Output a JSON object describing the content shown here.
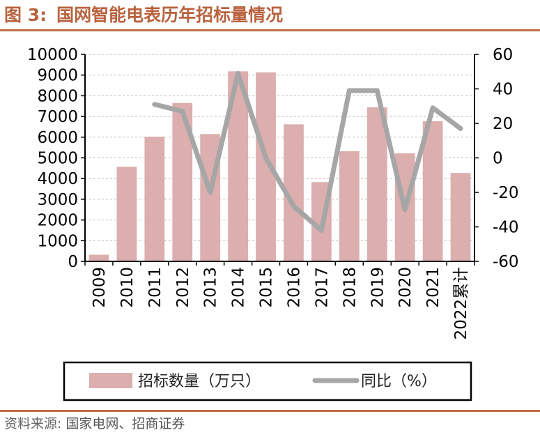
{
  "figure": {
    "label": "图 3:",
    "title": "国网智能电表历年招标量情况"
  },
  "source": {
    "label": "资料来源:",
    "text": "国家电网、招商证券"
  },
  "colors": {
    "bar": "#dcaeae",
    "line": "#a6a6a6",
    "rule": "#c26a44",
    "title": "#b8623e"
  },
  "chart_data": {
    "type": "bar",
    "categories": [
      "2009",
      "2010",
      "2011",
      "2012",
      "2013",
      "2014",
      "2015",
      "2016",
      "2017",
      "2018",
      "2019",
      "2020",
      "2021",
      "2022累计"
    ],
    "series": [
      {
        "name": "招标数量（万只）",
        "type": "bar",
        "axis": "left",
        "values": [
          320,
          4570,
          6020,
          7650,
          6150,
          9180,
          9130,
          6620,
          3830,
          5320,
          7440,
          5220,
          6770,
          4270
        ]
      },
      {
        "name": "同比（%）",
        "type": "line",
        "axis": "right",
        "values": [
          null,
          null,
          31,
          27,
          -20,
          49,
          0,
          -28,
          -42,
          39,
          39,
          -30,
          29,
          17
        ]
      }
    ],
    "y_left": {
      "min": 0,
      "max": 10000,
      "ticks": [
        0,
        1000,
        2000,
        3000,
        4000,
        5000,
        6000,
        7000,
        8000,
        9000,
        10000
      ]
    },
    "y_right": {
      "min": -60,
      "max": 60,
      "ticks": [
        -60,
        -40,
        -20,
        0,
        20,
        40,
        60
      ]
    },
    "grid": "horizontal dashed",
    "legend_position": "bottom"
  }
}
